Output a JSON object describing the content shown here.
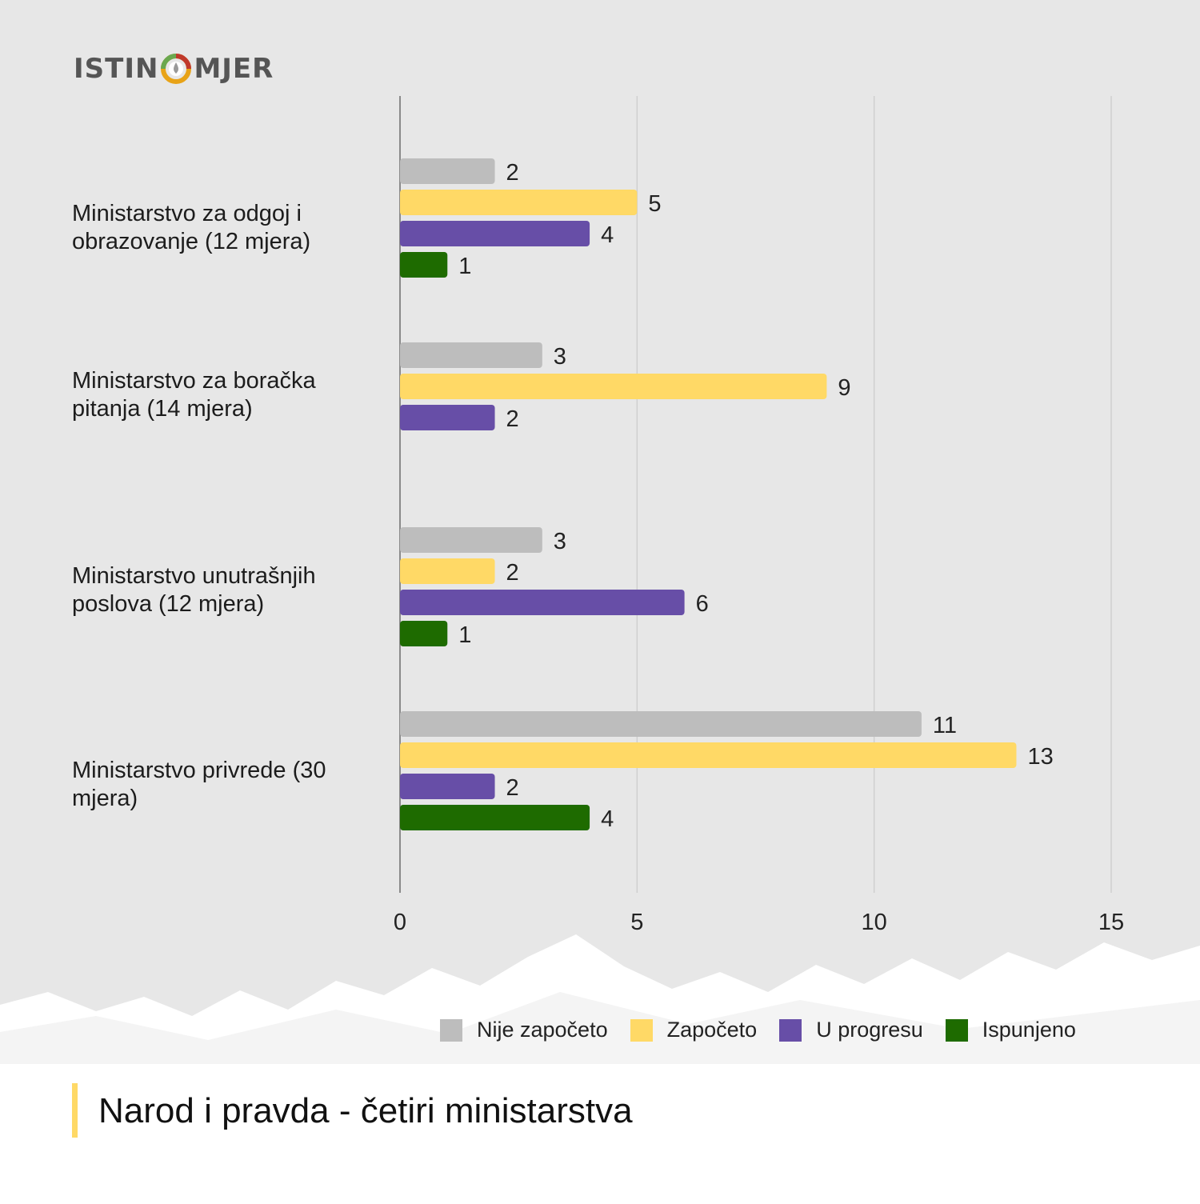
{
  "brand": {
    "logo_left": "ISTIN",
    "logo_right": "MJER",
    "logo_icon": "gauge-ring-icon"
  },
  "colors": {
    "background": "#e7e7e7",
    "grid": "#cfcfcf",
    "axis": "#8a8a8a",
    "series": [
      "#bdbdbd",
      "#ffd966",
      "#674ea7",
      "#1e6b00"
    ],
    "title_accent": "#ffd966"
  },
  "chart_data": {
    "type": "bar",
    "orientation": "horizontal",
    "title": "Narod i pravda - četiri ministarstva",
    "categories": [
      "Ministarstvo za odgoj i obrazovanje (12 mjera)",
      "Ministarstvo za boračka pitanja (14 mjera)",
      "Ministarstvo unutrašnjih poslova (12 mjera)",
      "Ministarstvo privrede (30 mjera)"
    ],
    "series": [
      {
        "name": "Nije započeto",
        "values": [
          2,
          3,
          3,
          11
        ]
      },
      {
        "name": "Započeto",
        "values": [
          5,
          9,
          2,
          13
        ]
      },
      {
        "name": "U progresu",
        "values": [
          4,
          2,
          6,
          2
        ]
      },
      {
        "name": "Ispunjeno",
        "values": [
          1,
          null,
          1,
          4
        ]
      }
    ],
    "xlim": [
      0,
      15
    ],
    "xticks": [
      0,
      5,
      10,
      15
    ],
    "grid": true,
    "legend_position": "bottom",
    "data_labels": true
  }
}
